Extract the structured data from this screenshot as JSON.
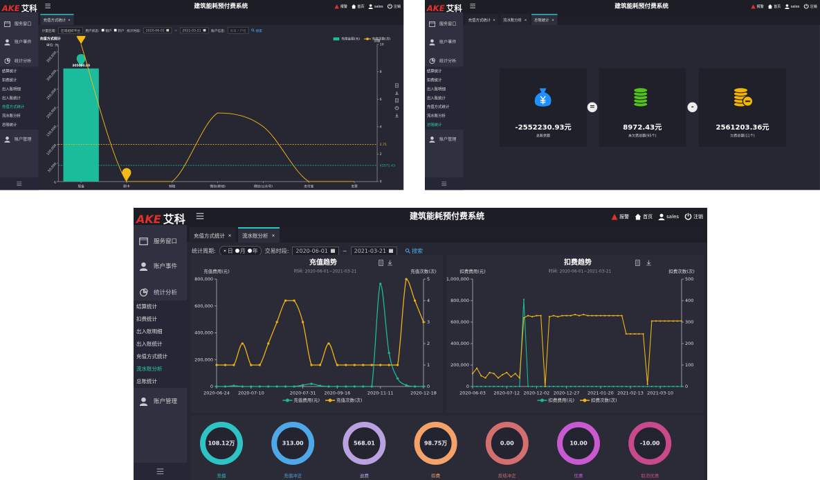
{
  "app": {
    "logo_brand": "AKE",
    "logo_name": "艾科",
    "title": "建筑能耗预付费系统",
    "header_links": [
      "报警",
      "首页",
      "sales",
      "注销"
    ],
    "menu": [
      "服务窗口",
      "账户事件",
      "统计分析"
    ],
    "submenu": [
      "结算统计",
      "扣费统计",
      "出入账明细",
      "出入账统计",
      "充值方式统计",
      "流水账分析",
      "总账统计"
    ],
    "menu_last": "账户管理"
  },
  "screen_recharge_method": {
    "tabs": [
      "充值方式统计"
    ],
    "active_tab": 0,
    "active_submenu": 4,
    "filters": {
      "area_label": "计量区域:",
      "area_value": "区域组织平台",
      "status_label": "用户状态:",
      "status_options": [
        "销户",
        "开户"
      ],
      "period_label": "统计时段:",
      "date_from": "2020-06-01",
      "range_separator": "~",
      "date_to": "2021-03-21",
      "account_label": "账户信息:",
      "account_placeholder": "房号 / 户名",
      "search": "搜索"
    },
    "chart": {
      "type": "bar-line",
      "title": "充值方式统计",
      "y_label": "单位: 元",
      "y2_label": "次数",
      "categories": [
        "现金",
        "刷卡",
        "转账",
        "微信(移动)",
        "微信(公众号)",
        "支付宝",
        "支票"
      ],
      "series": [
        {
          "name": "充值金额(元)",
          "type": "bar",
          "color": "#1abc9c",
          "values": [
            305000,
            0,
            0,
            0,
            0,
            0,
            0
          ],
          "value_labels": [
            "305000.00",
            null,
            null,
            null,
            null,
            null,
            null
          ]
        },
        {
          "name": "充值次数(次)",
          "type": "line",
          "axis": "y2",
          "color": "#f5b915",
          "values": [
            10,
            0,
            0,
            5,
            4,
            0,
            0
          ]
        }
      ],
      "avg_lines": [
        {
          "axis": "y",
          "color": "#1abc9c",
          "value": 43571.43
        },
        {
          "axis": "y2",
          "color": "#f5b915",
          "value": 2.71
        }
      ],
      "smooth": true,
      "pins": true,
      "ylim": [
        0,
        370000
      ],
      "yticks": [
        0,
        {
          "value": 50000,
          "label": "50,000"
        },
        {
          "value": 100000,
          "label": "100,000"
        },
        {
          "value": 150000,
          "label": "150,000"
        },
        {
          "value": 200000,
          "label": "200,000"
        },
        {
          "value": 250000,
          "label": "250,000"
        },
        {
          "value": 300000,
          "label": "300,000"
        },
        {
          "value": 350000,
          "label": "350,000"
        }
      ],
      "y2lim": [
        0,
        10
      ],
      "y2ticks": [
        0,
        2,
        4,
        6,
        8,
        10
      ]
    }
  },
  "screen_ledger": {
    "tabs": [
      "充值方式统计",
      "流水账分析",
      "总账统计"
    ],
    "active_tab": 2,
    "active_submenu": 6,
    "cards": [
      {
        "value": "-2552230.93元",
        "label": "总账余额",
        "color": "#1e90ff"
      },
      {
        "value": "8972.43元",
        "label": "未欠费总额(95个)",
        "color": "#52c41a"
      },
      {
        "value": "2561203.36元",
        "label": "欠费总额(11个)",
        "color": "#f5b400"
      }
    ],
    "operators": [
      "=",
      "-"
    ]
  },
  "screen_flow": {
    "tabs": [
      "充值方式统计",
      "流水账分析"
    ],
    "active_tab": 1,
    "active_submenu": 5,
    "filters": {
      "period_label": "统计周期:",
      "period_options": [
        "日",
        "月",
        "年"
      ],
      "period_selected": 0,
      "range_label": "交易时段:",
      "date_from": "2020-06-01",
      "range_separator": "~",
      "date_to": "2021-03-21",
      "search": "搜索"
    },
    "charts": [
      {
        "type": "line",
        "title": "充值趋势",
        "subtitle": "时间: 2020-06-01~2021-03-21",
        "y_label": "充值费用(元)",
        "y2_label": "充值次数(次)",
        "boundary_gap": false,
        "smooth": true,
        "dots": true,
        "categories": [
          "2020-06-24",
          null,
          null,
          null,
          "2020-07-10",
          null,
          null,
          null,
          null,
          null,
          "2020-07-31",
          null,
          null,
          null,
          "2020-09-16",
          null,
          null,
          null,
          null,
          "2020-11-11",
          null,
          null,
          null,
          null,
          "2020-12-18"
        ],
        "series": [
          {
            "name": "充值费用(元)",
            "color": "#1fb896",
            "values": [
              0,
              0,
              5000,
              0,
              0,
              0,
              0,
              0,
              0,
              0,
              10000,
              20000,
              5000,
              0,
              0,
              0,
              0,
              0,
              0,
              765000,
              250000,
              60000,
              10000,
              0,
              0
            ]
          },
          {
            "name": "充值次数(次)",
            "axis": "y2",
            "color": "#f0b414",
            "values": [
              1,
              1,
              1,
              2,
              1,
              1,
              2,
              3,
              4,
              4,
              3,
              1,
              1,
              2,
              1,
              1,
              1,
              1,
              1,
              1,
              1,
              1,
              5,
              4,
              3
            ]
          }
        ],
        "ylim": [
          0,
          800000
        ],
        "yticks": [
          0,
          {
            "value": 200000,
            "label": "200,000"
          },
          {
            "value": 400000,
            "label": "400,000"
          },
          {
            "value": 600000,
            "label": "600,000"
          },
          {
            "value": 800000,
            "label": "800,000"
          }
        ],
        "y2lim": [
          0,
          5
        ],
        "y2ticks": [
          0,
          1,
          2,
          3,
          4,
          5
        ]
      },
      {
        "type": "line",
        "title": "扣费趋势",
        "subtitle": "时间: 2020-06-01~2021-03-21",
        "y_label": "扣费费用(元)",
        "y2_label": "扣费次数(次)",
        "boundary_gap": false,
        "smooth": false,
        "dots": true,
        "categories": [
          "2020-06-03",
          null,
          null,
          null,
          null,
          null,
          null,
          null,
          "2020-07-12",
          null,
          null,
          null,
          null,
          null,
          null,
          "2020-12-02",
          null,
          null,
          null,
          null,
          null,
          null,
          "2020-12-27",
          null,
          null,
          null,
          null,
          null,
          null,
          null,
          "2021-01-20",
          null,
          null,
          null,
          null,
          null,
          null,
          "2021-02-13",
          null,
          null,
          null,
          null,
          null,
          null,
          "2021-03-10",
          null,
          null,
          null,
          null,
          null
        ],
        "series": [
          {
            "name": "扣费费用(元)",
            "color": "#1fb896",
            "values": [
              0,
              0,
              0,
              0,
              0,
              0,
              0,
              0,
              0,
              0,
              0,
              0,
              810000,
              0,
              0,
              0,
              0,
              0,
              0,
              0,
              0,
              0,
              0,
              0,
              0,
              0,
              0,
              0,
              0,
              0,
              0,
              0,
              0,
              0,
              0,
              0,
              0,
              0,
              0,
              0,
              0,
              0,
              0,
              0,
              0,
              0,
              0,
              0,
              0,
              0
            ]
          },
          {
            "name": "扣费次数(次)",
            "axis": "y2",
            "color": "#f0b414",
            "values": [
              60,
              85,
              50,
              40,
              65,
              60,
              40,
              55,
              65,
              45,
              60,
              40,
              320,
              330,
              325,
              330,
              330,
              0,
              325,
              330,
              325,
              330,
              330,
              330,
              335,
              330,
              335,
              330,
              330,
              330,
              330,
              330,
              330,
              330,
              330,
              330,
              245,
              245,
              245,
              245,
              245,
              10,
              305,
              305,
              305,
              305,
              305,
              305,
              305,
              305
            ]
          }
        ],
        "ylim": [
          0,
          1000000
        ],
        "yticks": [
          0,
          {
            "value": 200000,
            "label": "200,000"
          },
          {
            "value": 400000,
            "label": "400,000"
          },
          {
            "value": 600000,
            "label": "600,000"
          },
          {
            "value": 800000,
            "label": "800,000"
          },
          {
            "value": 1000000,
            "label": "1,000,000"
          }
        ],
        "y2lim": [
          0,
          500
        ],
        "y2ticks": [
          0,
          100,
          200,
          300,
          400,
          500
        ]
      }
    ],
    "gauges": [
      {
        "value": "108.12万",
        "label": "充值",
        "color": "#2ec4c4"
      },
      {
        "value": "313.00",
        "label": "充值冲正",
        "color": "#4ea8e8"
      },
      {
        "value": "568.01",
        "label": "退费",
        "color": "#b8a2e0"
      },
      {
        "value": "98.75万",
        "label": "扣费",
        "color": "#f5a26a"
      },
      {
        "value": "0.00",
        "label": "反结冲正",
        "color": "#d27070"
      },
      {
        "value": "10.00",
        "label": "优惠",
        "color": "#c85ad0"
      },
      {
        "value": "-10.00",
        "label": "取消优惠",
        "color": "#c84a8c"
      }
    ]
  }
}
